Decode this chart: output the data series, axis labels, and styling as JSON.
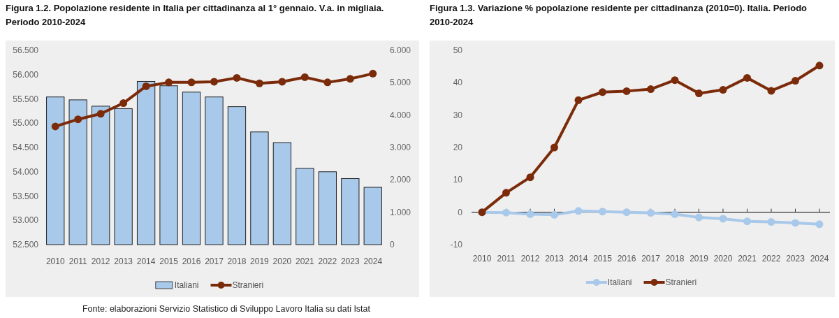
{
  "chart_data": [
    {
      "type": "bar",
      "title": "Figura 1.2. Popolazione residente in Italia per cittadinanza al 1° gennaio. V.a. in migliaia. Periodo 2010-2024",
      "categories": [
        "2010",
        "2011",
        "2012",
        "2013",
        "2014",
        "2015",
        "2016",
        "2017",
        "2018",
        "2019",
        "2020",
        "2021",
        "2022",
        "2023",
        "2024"
      ],
      "series": [
        {
          "name": "Italiani",
          "color": "#a9c9ea",
          "values": [
            55540,
            55480,
            55350,
            55300,
            55860,
            55770,
            55640,
            55540,
            55340,
            54820,
            54600,
            54070,
            54000,
            53860,
            53680
          ]
        },
        {
          "name": "Stranieri",
          "type": "line",
          "axis": "y2",
          "color": "#7b2b0a",
          "values": [
            3650,
            3870,
            4040,
            4370,
            4890,
            5010,
            5010,
            5030,
            5150,
            4980,
            5030,
            5170,
            5010,
            5120,
            5280
          ]
        }
      ],
      "ylim": [
        52500,
        56500
      ],
      "yticks": [
        {
          "value": 52500,
          "label": "52.500"
        },
        {
          "value": 53000,
          "label": "53.000"
        },
        {
          "value": 53500,
          "label": "53.500"
        },
        {
          "value": 54000,
          "label": "54.000"
        },
        {
          "value": 54500,
          "label": "54.500"
        },
        {
          "value": 55000,
          "label": "55.000"
        },
        {
          "value": 55500,
          "label": "55.500"
        },
        {
          "value": 56000,
          "label": "56.000"
        },
        {
          "value": 56500,
          "label": "56.500"
        }
      ],
      "y2lim": [
        0,
        6000
      ],
      "y2ticks": [
        0,
        {
          "value": 1000,
          "label": "1.000"
        },
        {
          "value": 2000,
          "label": "2.000"
        },
        {
          "value": 3000,
          "label": "3.000"
        },
        {
          "value": 4000,
          "label": "4.000"
        },
        {
          "value": 5000,
          "label": "5.000"
        },
        {
          "value": 6000,
          "label": "6.000"
        }
      ],
      "marker": "circle",
      "legend": "bottom",
      "annotations": [
        "Fonte: elaborazioni Servizio Statistico di Sviluppo Lavoro Italia su dati Istat"
      ]
    },
    {
      "type": "line",
      "title": "Figura 1.3. Variazione % popolazione residente per cittadinanza (2010=0). Italia. Periodo 2010-2024",
      "categories": [
        "2010",
        "2011",
        "2012",
        "2013",
        "2014",
        "2015",
        "2016",
        "2017",
        "2018",
        "2019",
        "2020",
        "2021",
        "2022",
        "2023",
        "2024"
      ],
      "series": [
        {
          "name": "Italiani",
          "color": "#a9c9ea",
          "values": [
            0,
            -0.1,
            -0.6,
            -0.8,
            0.4,
            0.2,
            0,
            -0.2,
            -0.6,
            -1.6,
            -2.0,
            -2.8,
            -3.0,
            -3.3,
            -3.7
          ]
        },
        {
          "name": "Stranieri",
          "color": "#7b2b0a",
          "values": [
            0,
            6.0,
            10.8,
            20.0,
            34.6,
            37.1,
            37.4,
            38.0,
            40.8,
            36.7,
            37.8,
            41.5,
            37.5,
            40.6,
            45.3
          ]
        }
      ],
      "ylim": [
        -10,
        50
      ],
      "yticks": [
        -10,
        0,
        10,
        20,
        30,
        40,
        50
      ],
      "marker": "circle",
      "legend": "bottom"
    }
  ]
}
